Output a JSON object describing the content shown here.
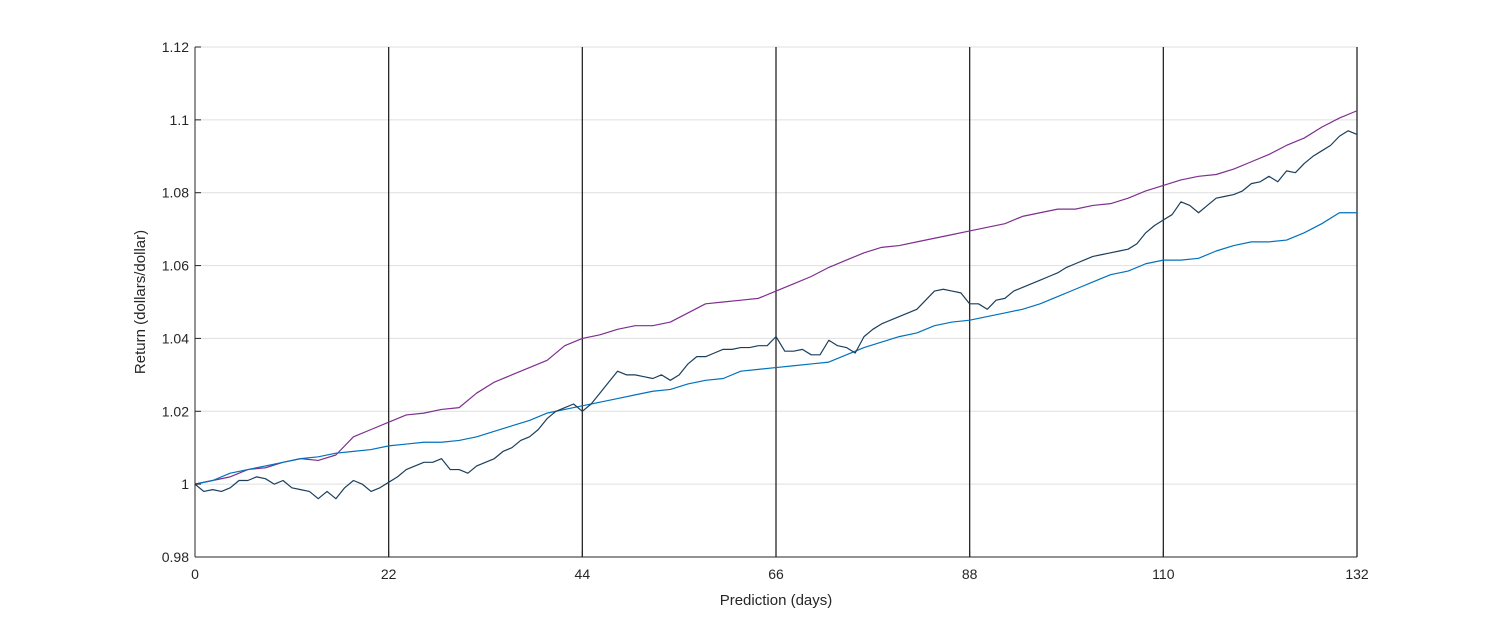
{
  "chart_data": {
    "type": "line",
    "title": "",
    "xlabel": "Prediction (days)",
    "ylabel": "Return (dollars/dollar)",
    "xlim": [
      0,
      132
    ],
    "ylim": [
      0.98,
      1.12
    ],
    "xticks": [
      0,
      22,
      44,
      66,
      88,
      110,
      132
    ],
    "xtick_labels": [
      "0",
      "22",
      "44",
      "66",
      "88",
      "110",
      "132"
    ],
    "yticks": [
      0.98,
      1.0,
      1.02,
      1.04,
      1.06,
      1.08,
      1.1,
      1.12
    ],
    "ytick_labels": [
      "0.98",
      "1",
      "1.02",
      "1.04",
      "1.06",
      "1.08",
      "1.1",
      "1.12"
    ],
    "grid": "horizontal",
    "legend": "none",
    "vertical_lines_at": [
      22,
      44,
      66,
      88,
      110,
      132
    ],
    "vertical_line_color": "#262626",
    "grid_color": "#dfdfdf",
    "series": [
      {
        "color": "#7e2f8e",
        "points": [
          [
            0,
            1.0
          ],
          [
            2,
            1.001
          ],
          [
            4,
            1.002
          ],
          [
            6,
            1.004
          ],
          [
            8,
            1.0045
          ],
          [
            10,
            1.006
          ],
          [
            12,
            1.007
          ],
          [
            14,
            1.0065
          ],
          [
            16,
            1.008
          ],
          [
            18,
            1.013
          ],
          [
            20,
            1.015
          ],
          [
            22,
            1.017
          ],
          [
            24,
            1.019
          ],
          [
            26,
            1.0195
          ],
          [
            28,
            1.0205
          ],
          [
            30,
            1.021
          ],
          [
            32,
            1.025
          ],
          [
            34,
            1.028
          ],
          [
            36,
            1.03
          ],
          [
            38,
            1.032
          ],
          [
            40,
            1.034
          ],
          [
            42,
            1.038
          ],
          [
            44,
            1.04
          ],
          [
            46,
            1.041
          ],
          [
            48,
            1.0425
          ],
          [
            50,
            1.0435
          ],
          [
            52,
            1.0435
          ],
          [
            54,
            1.0445
          ],
          [
            56,
            1.047
          ],
          [
            58,
            1.0495
          ],
          [
            60,
            1.05
          ],
          [
            62,
            1.0505
          ],
          [
            64,
            1.051
          ],
          [
            66,
            1.053
          ],
          [
            68,
            1.055
          ],
          [
            70,
            1.057
          ],
          [
            72,
            1.0595
          ],
          [
            74,
            1.0615
          ],
          [
            76,
            1.0635
          ],
          [
            78,
            1.065
          ],
          [
            80,
            1.0655
          ],
          [
            82,
            1.0665
          ],
          [
            84,
            1.0675
          ],
          [
            86,
            1.0685
          ],
          [
            88,
            1.0695
          ],
          [
            90,
            1.0705
          ],
          [
            92,
            1.0715
          ],
          [
            94,
            1.0735
          ],
          [
            96,
            1.0745
          ],
          [
            98,
            1.0755
          ],
          [
            100,
            1.0755
          ],
          [
            102,
            1.0765
          ],
          [
            104,
            1.077
          ],
          [
            106,
            1.0785
          ],
          [
            108,
            1.0805
          ],
          [
            110,
            1.082
          ],
          [
            112,
            1.0835
          ],
          [
            114,
            1.0845
          ],
          [
            116,
            1.085
          ],
          [
            118,
            1.0865
          ],
          [
            120,
            1.0885
          ],
          [
            122,
            1.0905
          ],
          [
            124,
            1.093
          ],
          [
            126,
            1.095
          ],
          [
            128,
            1.098
          ],
          [
            130,
            1.1005
          ],
          [
            132,
            1.1025
          ]
        ]
      },
      {
        "color": "#0072bd",
        "points": [
          [
            0,
            1.0
          ],
          [
            2,
            1.001
          ],
          [
            4,
            1.003
          ],
          [
            6,
            1.004
          ],
          [
            8,
            1.005
          ],
          [
            10,
            1.006
          ],
          [
            12,
            1.007
          ],
          [
            14,
            1.0075
          ],
          [
            16,
            1.0085
          ],
          [
            18,
            1.009
          ],
          [
            20,
            1.0095
          ],
          [
            22,
            1.0105
          ],
          [
            24,
            1.011
          ],
          [
            26,
            1.0115
          ],
          [
            28,
            1.0115
          ],
          [
            30,
            1.012
          ],
          [
            32,
            1.013
          ],
          [
            34,
            1.0145
          ],
          [
            36,
            1.016
          ],
          [
            38,
            1.0175
          ],
          [
            40,
            1.0195
          ],
          [
            42,
            1.0205
          ],
          [
            44,
            1.0215
          ],
          [
            46,
            1.0225
          ],
          [
            48,
            1.0235
          ],
          [
            50,
            1.0245
          ],
          [
            52,
            1.0255
          ],
          [
            54,
            1.026
          ],
          [
            56,
            1.0275
          ],
          [
            58,
            1.0285
          ],
          [
            60,
            1.029
          ],
          [
            62,
            1.031
          ],
          [
            64,
            1.0315
          ],
          [
            66,
            1.032
          ],
          [
            68,
            1.0325
          ],
          [
            70,
            1.033
          ],
          [
            72,
            1.0335
          ],
          [
            74,
            1.0355
          ],
          [
            76,
            1.0375
          ],
          [
            78,
            1.039
          ],
          [
            80,
            1.0405
          ],
          [
            82,
            1.0415
          ],
          [
            84,
            1.0435
          ],
          [
            86,
            1.0445
          ],
          [
            88,
            1.045
          ],
          [
            90,
            1.046
          ],
          [
            92,
            1.047
          ],
          [
            94,
            1.048
          ],
          [
            96,
            1.0495
          ],
          [
            98,
            1.0515
          ],
          [
            100,
            1.0535
          ],
          [
            102,
            1.0555
          ],
          [
            104,
            1.0575
          ],
          [
            106,
            1.0585
          ],
          [
            108,
            1.0605
          ],
          [
            110,
            1.0615
          ],
          [
            112,
            1.0615
          ],
          [
            114,
            1.062
          ],
          [
            116,
            1.064
          ],
          [
            118,
            1.0655
          ],
          [
            120,
            1.0665
          ],
          [
            122,
            1.0665
          ],
          [
            124,
            1.067
          ],
          [
            126,
            1.069
          ],
          [
            128,
            1.0715
          ],
          [
            130,
            1.0745
          ],
          [
            132,
            1.0745
          ]
        ]
      },
      {
        "color": "#1b3f5c",
        "points": [
          [
            0,
            1.0
          ],
          [
            1,
            0.998
          ],
          [
            2,
            0.9985
          ],
          [
            3,
            0.998
          ],
          [
            4,
            0.999
          ],
          [
            5,
            1.001
          ],
          [
            6,
            1.001
          ],
          [
            7,
            1.002
          ],
          [
            8,
            1.0015
          ],
          [
            9,
            1.0
          ],
          [
            10,
            1.001
          ],
          [
            11,
            0.999
          ],
          [
            12,
            0.9985
          ],
          [
            13,
            0.998
          ],
          [
            14,
            0.996
          ],
          [
            15,
            0.998
          ],
          [
            16,
            0.996
          ],
          [
            17,
            0.999
          ],
          [
            18,
            1.001
          ],
          [
            19,
            1.0
          ],
          [
            20,
            0.998
          ],
          [
            21,
            0.999
          ],
          [
            22,
            1.0005
          ],
          [
            23,
            1.002
          ],
          [
            24,
            1.004
          ],
          [
            25,
            1.005
          ],
          [
            26,
            1.006
          ],
          [
            27,
            1.006
          ],
          [
            28,
            1.007
          ],
          [
            29,
            1.004
          ],
          [
            30,
            1.004
          ],
          [
            31,
            1.003
          ],
          [
            32,
            1.005
          ],
          [
            33,
            1.006
          ],
          [
            34,
            1.007
          ],
          [
            35,
            1.009
          ],
          [
            36,
            1.01
          ],
          [
            37,
            1.012
          ],
          [
            38,
            1.013
          ],
          [
            39,
            1.015
          ],
          [
            40,
            1.018
          ],
          [
            41,
            1.02
          ],
          [
            42,
            1.021
          ],
          [
            43,
            1.022
          ],
          [
            44,
            1.02
          ],
          [
            45,
            1.022
          ],
          [
            46,
            1.025
          ],
          [
            47,
            1.028
          ],
          [
            48,
            1.031
          ],
          [
            49,
            1.03
          ],
          [
            50,
            1.03
          ],
          [
            51,
            1.0295
          ],
          [
            52,
            1.029
          ],
          [
            53,
            1.03
          ],
          [
            54,
            1.0285
          ],
          [
            55,
            1.03
          ],
          [
            56,
            1.033
          ],
          [
            57,
            1.035
          ],
          [
            58,
            1.035
          ],
          [
            59,
            1.036
          ],
          [
            60,
            1.037
          ],
          [
            61,
            1.037
          ],
          [
            62,
            1.0375
          ],
          [
            63,
            1.0375
          ],
          [
            64,
            1.038
          ],
          [
            65,
            1.038
          ],
          [
            66,
            1.0405
          ],
          [
            67,
            1.0365
          ],
          [
            68,
            1.0365
          ],
          [
            69,
            1.037
          ],
          [
            70,
            1.0355
          ],
          [
            71,
            1.0355
          ],
          [
            72,
            1.0395
          ],
          [
            73,
            1.038
          ],
          [
            74,
            1.0375
          ],
          [
            75,
            1.036
          ],
          [
            76,
            1.0405
          ],
          [
            77,
            1.0425
          ],
          [
            78,
            1.044
          ],
          [
            79,
            1.045
          ],
          [
            80,
            1.046
          ],
          [
            81,
            1.047
          ],
          [
            82,
            1.048
          ],
          [
            83,
            1.0505
          ],
          [
            84,
            1.053
          ],
          [
            85,
            1.0535
          ],
          [
            86,
            1.053
          ],
          [
            87,
            1.0525
          ],
          [
            88,
            1.0495
          ],
          [
            89,
            1.0495
          ],
          [
            90,
            1.048
          ],
          [
            91,
            1.0505
          ],
          [
            92,
            1.051
          ],
          [
            93,
            1.053
          ],
          [
            94,
            1.054
          ],
          [
            95,
            1.055
          ],
          [
            96,
            1.056
          ],
          [
            97,
            1.057
          ],
          [
            98,
            1.058
          ],
          [
            99,
            1.0595
          ],
          [
            100,
            1.0605
          ],
          [
            101,
            1.0615
          ],
          [
            102,
            1.0625
          ],
          [
            103,
            1.063
          ],
          [
            104,
            1.0635
          ],
          [
            105,
            1.064
          ],
          [
            106,
            1.0645
          ],
          [
            107,
            1.066
          ],
          [
            108,
            1.069
          ],
          [
            109,
            1.071
          ],
          [
            110,
            1.0725
          ],
          [
            111,
            1.074
          ],
          [
            112,
            1.0775
          ],
          [
            113,
            1.0765
          ],
          [
            114,
            1.0745
          ],
          [
            115,
            1.0765
          ],
          [
            116,
            1.0785
          ],
          [
            117,
            1.079
          ],
          [
            118,
            1.0795
          ],
          [
            119,
            1.0805
          ],
          [
            120,
            1.0825
          ],
          [
            121,
            1.083
          ],
          [
            122,
            1.0845
          ],
          [
            123,
            1.083
          ],
          [
            124,
            1.086
          ],
          [
            125,
            1.0855
          ],
          [
            126,
            1.088
          ],
          [
            127,
            1.09
          ],
          [
            128,
            1.0915
          ],
          [
            129,
            1.093
          ],
          [
            130,
            1.0955
          ],
          [
            131,
            1.097
          ],
          [
            132,
            1.096
          ]
        ]
      }
    ]
  }
}
